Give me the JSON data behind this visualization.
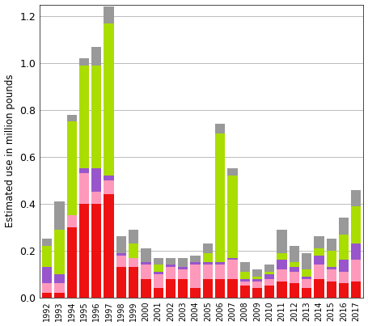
{
  "years": [
    "1992",
    "1993",
    "1994",
    "1995",
    "1996",
    "1997",
    "1998",
    "1999",
    "2000",
    "2001",
    "2002",
    "2003",
    "2004",
    "2005",
    "2006",
    "2007",
    "2008",
    "2009",
    "2010",
    "2011",
    "2012",
    "2013",
    "2014",
    "2015",
    "2016",
    "2017"
  ],
  "colors": [
    "#ee1111",
    "#ff99bb",
    "#9955cc",
    "#aadd00",
    "#999999"
  ],
  "series_order": [
    "red",
    "pink",
    "purple",
    "lime",
    "gray"
  ],
  "series": {
    "red": [
      0.02,
      0.02,
      0.3,
      0.4,
      0.4,
      0.44,
      0.13,
      0.13,
      0.08,
      0.04,
      0.08,
      0.08,
      0.04,
      0.08,
      0.08,
      0.08,
      0.05,
      0.04,
      0.05,
      0.07,
      0.06,
      0.04,
      0.08,
      0.07,
      0.06,
      0.07
    ],
    "pink": [
      0.04,
      0.04,
      0.05,
      0.13,
      0.05,
      0.06,
      0.05,
      0.04,
      0.06,
      0.06,
      0.05,
      0.04,
      0.1,
      0.06,
      0.06,
      0.08,
      0.02,
      0.03,
      0.03,
      0.05,
      0.05,
      0.04,
      0.06,
      0.05,
      0.05,
      0.09
    ],
    "purple": [
      0.07,
      0.04,
      0.0,
      0.02,
      0.1,
      0.02,
      0.01,
      0.0,
      0.01,
      0.01,
      0.01,
      0.01,
      0.01,
      0.01,
      0.01,
      0.01,
      0.01,
      0.01,
      0.02,
      0.04,
      0.02,
      0.01,
      0.04,
      0.01,
      0.05,
      0.07
    ],
    "lime": [
      0.09,
      0.19,
      0.4,
      0.44,
      0.44,
      0.65,
      0.0,
      0.06,
      0.0,
      0.03,
      0.0,
      0.0,
      0.0,
      0.04,
      0.55,
      0.35,
      0.03,
      0.01,
      0.01,
      0.03,
      0.02,
      0.03,
      0.03,
      0.07,
      0.11,
      0.16
    ],
    "gray": [
      0.03,
      0.12,
      0.03,
      0.03,
      0.08,
      0.07,
      0.07,
      0.06,
      0.06,
      0.03,
      0.03,
      0.04,
      0.03,
      0.04,
      0.04,
      0.03,
      0.04,
      0.03,
      0.03,
      0.1,
      0.07,
      0.07,
      0.05,
      0.05,
      0.07,
      0.07
    ]
  },
  "ylabel": "Estimated use in million pounds",
  "ylim": [
    0,
    1.25
  ],
  "yticks": [
    0.0,
    0.2,
    0.4,
    0.6,
    0.8,
    1.0,
    1.2
  ],
  "background_color": "#ffffff",
  "grid_color": "#bbbbbb"
}
